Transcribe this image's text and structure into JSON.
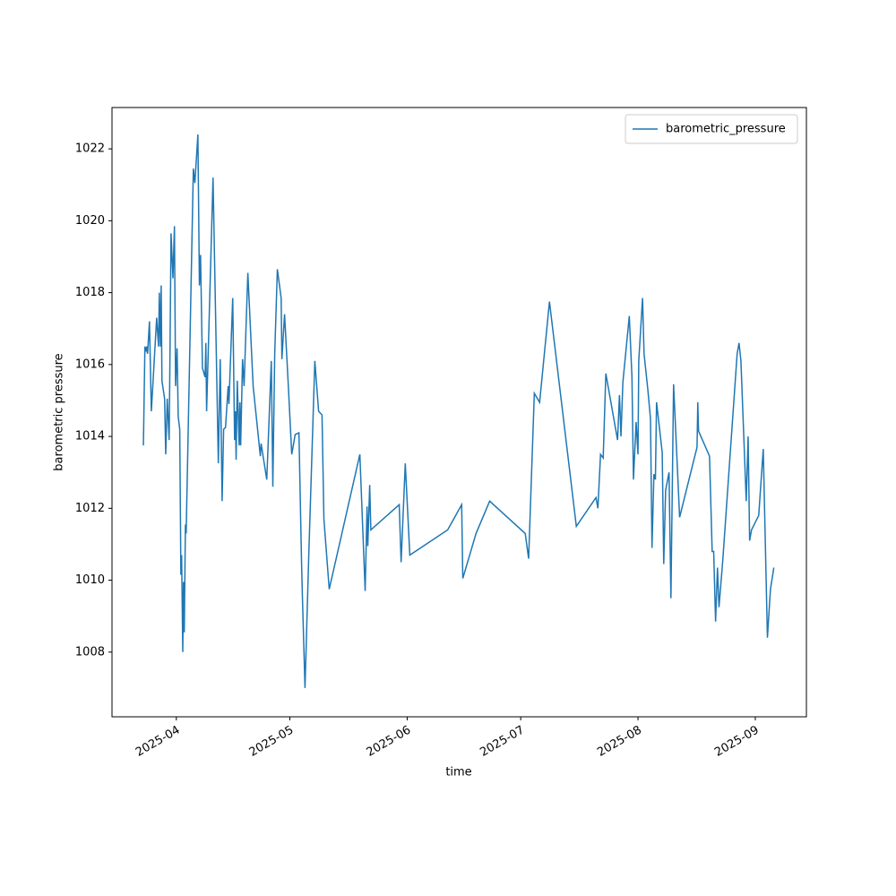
{
  "chart_data": {
    "type": "line",
    "xlabel": "time",
    "ylabel": "barometric pressure",
    "x": [
      20170.3,
      20170.7,
      20171.0,
      20171.2,
      20171.4,
      20171.9,
      20172.4,
      20173.8,
      20174.3,
      20174.5,
      20174.8,
      20175.0,
      20175.2,
      20175.9,
      20176.2,
      20176.6,
      20177.1,
      20177.3,
      20177.6,
      20178.1,
      20178.5,
      20178.8,
      20179.2,
      20179.5,
      20179.9,
      20180.2,
      20180.4,
      20180.7,
      20180.9,
      20181.1,
      20181.4,
      20181.6,
      20183.5,
      20183.9,
      20184.7,
      20185.1,
      20185.4,
      20185.9,
      20186.6,
      20186.8,
      20187.0,
      20188.7,
      20190.1,
      20190.6,
      20191.1,
      20191.5,
      20192.0,
      20192.7,
      20192.9,
      20193.9,
      20194.4,
      20194.6,
      20194.8,
      20195.1,
      20195.6,
      20195.8,
      20196.0,
      20196.5,
      20196.9,
      20197.9,
      20199.3,
      20201.2,
      20201.4,
      20202.9,
      20204.1,
      20204.5,
      20205.0,
      20205.7,
      20206.7,
      20206.9,
      20207.6,
      20208.6,
      20209.5,
      20210.4,
      20211.4,
      20212.1,
      20212.3,
      20213.0,
      20214.0,
      20215.6,
      20216.6,
      20217.5,
      20218.0,
      20219.4,
      20227.5,
      20228.9,
      20229.4,
      20229.6,
      20230.1,
      20230.4,
      20237.9,
      20238.4,
      20239.5,
      20240.7,
      20250.7,
      20254.4,
      20254.7,
      20258.2,
      20261.8,
      20271.2,
      20272.1,
      20273.6,
      20275.0,
      20277.6,
      20284.7,
      20289.9,
      20290.4,
      20291.1,
      20291.8,
      20292.5,
      20295.6,
      20296.1,
      20296.5,
      20297.0,
      20298.7,
      20299.4,
      20299.8,
      20300.5,
      20301.0,
      20301.2,
      20302.2,
      20302.6,
      20303.6,
      20304.3,
      20304.7,
      20305.2,
      20305.6,
      20305.9,
      20307.4,
      20307.8,
      20308.3,
      20309.2,
      20309.7,
      20310.4,
      20312.0,
      20316.6,
      20316.8,
      20317.0,
      20319.9,
      20320.6,
      20321.0,
      20321.5,
      20322.0,
      20322.4,
      20323.4,
      20327.2,
      20327.7,
      20328.2,
      20329.6,
      20330.1,
      20330.5,
      20331.0,
      20332.9,
      20334.1,
      20335.2,
      20336.0,
      20336.9
    ],
    "series": [
      {
        "name": "barometric_pressure",
        "color": "#1f77b4",
        "values": [
          1013.75,
          1016.5,
          1016.4,
          1016.5,
          1016.3,
          1017.2,
          1014.7,
          1017.3,
          1016.5,
          1018.0,
          1016.5,
          1018.2,
          1015.55,
          1015.05,
          1013.5,
          1015.05,
          1013.9,
          1016.0,
          1019.65,
          1018.4,
          1019.85,
          1015.4,
          1016.45,
          1014.55,
          1014.2,
          1010.15,
          1010.7,
          1008.0,
          1009.95,
          1008.55,
          1011.55,
          1011.3,
          1021.45,
          1021.05,
          1022.4,
          1018.2,
          1019.05,
          1015.9,
          1015.65,
          1016.6,
          1014.7,
          1021.2,
          1013.25,
          1016.15,
          1012.2,
          1014.2,
          1014.25,
          1015.4,
          1014.9,
          1017.85,
          1013.9,
          1014.7,
          1013.35,
          1015.55,
          1013.75,
          1014.95,
          1013.75,
          1016.15,
          1015.4,
          1018.55,
          1015.4,
          1013.45,
          1013.8,
          1012.8,
          1016.1,
          1012.6,
          1016.3,
          1018.65,
          1017.85,
          1016.15,
          1017.4,
          1015.4,
          1013.5,
          1014.05,
          1014.1,
          1010.45,
          1009.6,
          1007.0,
          1010.7,
          1016.1,
          1014.7,
          1014.6,
          1011.7,
          1009.75,
          1013.5,
          1009.7,
          1012.05,
          1010.95,
          1012.65,
          1011.4,
          1012.1,
          1010.5,
          1013.25,
          1010.7,
          1011.4,
          1012.1,
          1010.05,
          1011.3,
          1012.2,
          1011.3,
          1010.6,
          1015.2,
          1014.95,
          1017.75,
          1011.5,
          1012.3,
          1012.0,
          1013.5,
          1013.4,
          1015.75,
          1013.9,
          1015.15,
          1014.0,
          1015.5,
          1017.35,
          1015.65,
          1012.8,
          1014.4,
          1013.5,
          1016.1,
          1017.85,
          1016.3,
          1015.3,
          1014.5,
          1010.9,
          1012.95,
          1012.8,
          1014.95,
          1013.55,
          1010.45,
          1012.5,
          1013.0,
          1009.5,
          1015.45,
          1011.75,
          1013.7,
          1014.95,
          1014.15,
          1013.45,
          1010.8,
          1010.8,
          1008.85,
          1010.35,
          1009.25,
          1010.55,
          1016.3,
          1016.6,
          1016.1,
          1012.2,
          1014.0,
          1011.1,
          1011.4,
          1011.8,
          1013.65,
          1008.4,
          1009.75,
          1010.35
        ]
      }
    ],
    "xlim": [
      20162,
      20345.5
    ],
    "xticks": [
      {
        "value": 20179,
        "label": "2025-04"
      },
      {
        "value": 20209,
        "label": "2025-05"
      },
      {
        "value": 20240,
        "label": "2025-06"
      },
      {
        "value": 20270,
        "label": "2025-07"
      },
      {
        "value": 20301,
        "label": "2025-08"
      },
      {
        "value": 20332,
        "label": "2025-09"
      }
    ],
    "ylim": [
      1006.2,
      1023.15
    ],
    "yticks": [
      1008,
      1010,
      1012,
      1014,
      1016,
      1018,
      1020,
      1022
    ],
    "grid": false,
    "legend": "upper right"
  }
}
